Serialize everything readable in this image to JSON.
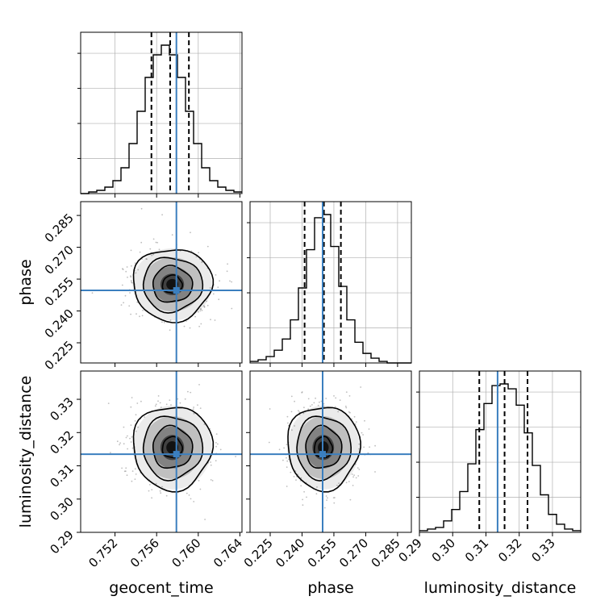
{
  "chart_data": {
    "type": "corner",
    "parameters": [
      "geocent_time",
      "phase",
      "luminosity_distance"
    ],
    "axis_labels": [
      "geocent_time",
      "phase",
      "luminosity_distance"
    ],
    "tick_labels": {
      "geocent_time": [
        "0.752",
        "0.756",
        "0.760",
        "0.764"
      ],
      "phase": [
        "0.225",
        "0.240",
        "0.255",
        "0.270",
        "0.285"
      ],
      "luminosity_distance": [
        "0.29",
        "0.30",
        "0.31",
        "0.32",
        "0.33"
      ]
    },
    "ranges": {
      "geocent_time": [
        0.7487,
        0.7642
      ],
      "phase": [
        0.2155,
        0.2915
      ],
      "luminosity_distance": [
        0.29,
        0.3385
      ]
    },
    "injection": {
      "geocent_time": 0.7579,
      "phase": 0.2497,
      "luminosity_distance": 0.3135
    },
    "quantiles": {
      "geocent_time": [
        0.7555,
        0.7573,
        0.7591
      ],
      "phase": [
        0.2412,
        0.2503,
        0.2583
      ],
      "luminosity_distance": [
        0.308,
        0.3156,
        0.3225
      ]
    },
    "histograms": {
      "geocent_time": {
        "edges_range": [
          0.7487,
          0.7642
        ],
        "counts": [
          0.0,
          0.01,
          0.02,
          0.04,
          0.08,
          0.16,
          0.31,
          0.51,
          0.72,
          0.86,
          0.92,
          0.86,
          0.72,
          0.51,
          0.31,
          0.16,
          0.08,
          0.04,
          0.02,
          0.01
        ]
      },
      "phase": {
        "edges_range": [
          0.2155,
          0.2915
        ],
        "counts": [
          0.01,
          0.02,
          0.04,
          0.08,
          0.15,
          0.27,
          0.47,
          0.71,
          0.91,
          0.93,
          0.73,
          0.48,
          0.27,
          0.13,
          0.06,
          0.03,
          0.01,
          0.0,
          0.0,
          0.0
        ]
      },
      "luminosity_distance": {
        "edges_range": [
          0.29,
          0.3385
        ],
        "counts": [
          0.01,
          0.02,
          0.03,
          0.07,
          0.14,
          0.25,
          0.42,
          0.63,
          0.79,
          0.9,
          0.91,
          0.88,
          0.78,
          0.61,
          0.41,
          0.23,
          0.11,
          0.05,
          0.02,
          0.01
        ]
      }
    },
    "posterior_2d": {
      "phase|geocent_time": {
        "mean": [
          0.7575,
          0.2525
        ],
        "sigma": [
          0.0019,
          0.0085
        ]
      },
      "luminosity_distance|geocent_time": {
        "mean": [
          0.7575,
          0.3155
        ],
        "sigma": [
          0.0019,
          0.0063
        ]
      },
      "luminosity_distance|phase": {
        "mean": [
          0.25,
          0.3155
        ],
        "sigma": [
          0.0085,
          0.0063
        ]
      }
    },
    "contour_levels_sigma": [
      0.5,
      1.0,
      1.5,
      2.0
    ],
    "colors": {
      "histogram": "#000000",
      "injection": "#3b7fbf",
      "grid": "#b0b0b0",
      "density": "#000000",
      "scatter": "#888888"
    }
  }
}
